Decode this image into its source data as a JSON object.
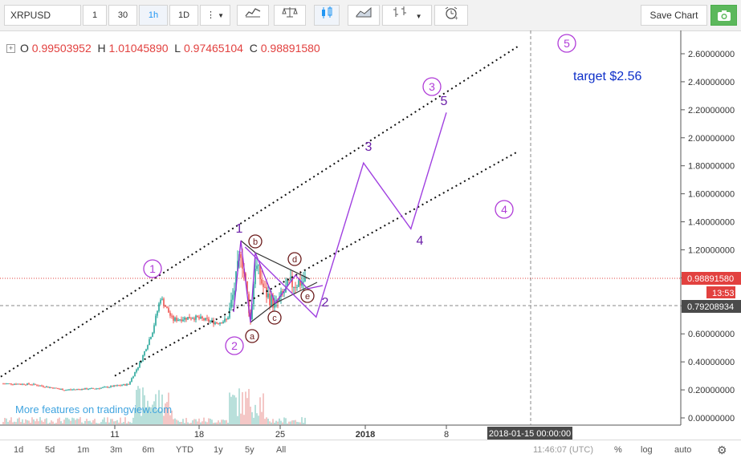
{
  "toolbar": {
    "symbol": "XRPUSD",
    "intervals": [
      "1",
      "30",
      "1h",
      "1D"
    ],
    "active_interval": "1h",
    "save_label": "Save Chart"
  },
  "legend": {
    "o_label": "O",
    "o_value": "0.99503952",
    "h_label": "H",
    "h_value": "1.01045890",
    "l_label": "L",
    "l_value": "0.97465104",
    "c_label": "C",
    "c_value": "0.98891580"
  },
  "price_axis": {
    "ticks": [
      "2.60000000",
      "2.40000000",
      "2.20000000",
      "2.00000000",
      "1.80000000",
      "1.60000000",
      "1.40000000",
      "1.20000000",
      "1.00000000",
      "0.80000000",
      "0.60000000",
      "0.40000000",
      "0.20000000",
      "0.00000000"
    ],
    "last_price_label": "0.98891580",
    "countdown_label": "13:53",
    "crosshair_price_label": "0.79208934"
  },
  "time_axis": {
    "ticks": [
      "11",
      "18",
      "25",
      "2018",
      "8"
    ],
    "crosshair_time_label": "2018-01-15 00:00:00"
  },
  "annotations": {
    "target_text": "target $2.56",
    "watermark": "More features on tradingview.com",
    "circled_waves": [
      "1",
      "2",
      "3",
      "4",
      "5"
    ],
    "wave_numbers": [
      "1",
      "2",
      "3",
      "4",
      "5"
    ],
    "sub_waves": [
      "a",
      "b",
      "c",
      "d",
      "e"
    ]
  },
  "bottom": {
    "ranges": [
      "1d",
      "5d",
      "1m",
      "3m",
      "6m",
      "YTD",
      "1y",
      "5y",
      "All"
    ],
    "clock": "11:46:07 (UTC)",
    "pct": "%",
    "log": "log",
    "auto": "auto"
  },
  "colors": {
    "accent": "#2196f3",
    "wave_purple": "#9b30d9",
    "target_blue": "#0d2fc9",
    "last_price_red": "#e2413f",
    "candle_green": "#26a69a"
  },
  "chart_data": {
    "type": "candlestick",
    "symbol": "XRPUSD",
    "ylim": [
      0,
      2.7
    ],
    "last_close": 0.9889158,
    "projected_path": [
      {
        "x": "2017-12-22",
        "y": 1.22
      },
      {
        "x": "2017-12-28",
        "y": 0.72
      },
      {
        "x": "2018-01-01",
        "y": 1.82
      },
      {
        "x": "2018-01-05",
        "y": 1.35
      },
      {
        "x": "2018-01-08",
        "y": 2.18
      }
    ],
    "channel_upper": [
      {
        "x": "2017-11-30",
        "y": 0.22
      },
      {
        "x": "2018-01-14",
        "y": 2.65
      }
    ],
    "channel_lower": [
      {
        "x": "2017-12-11",
        "y": 0.3
      },
      {
        "x": "2018-01-14",
        "y": 1.9
      }
    ],
    "target": 2.56
  }
}
